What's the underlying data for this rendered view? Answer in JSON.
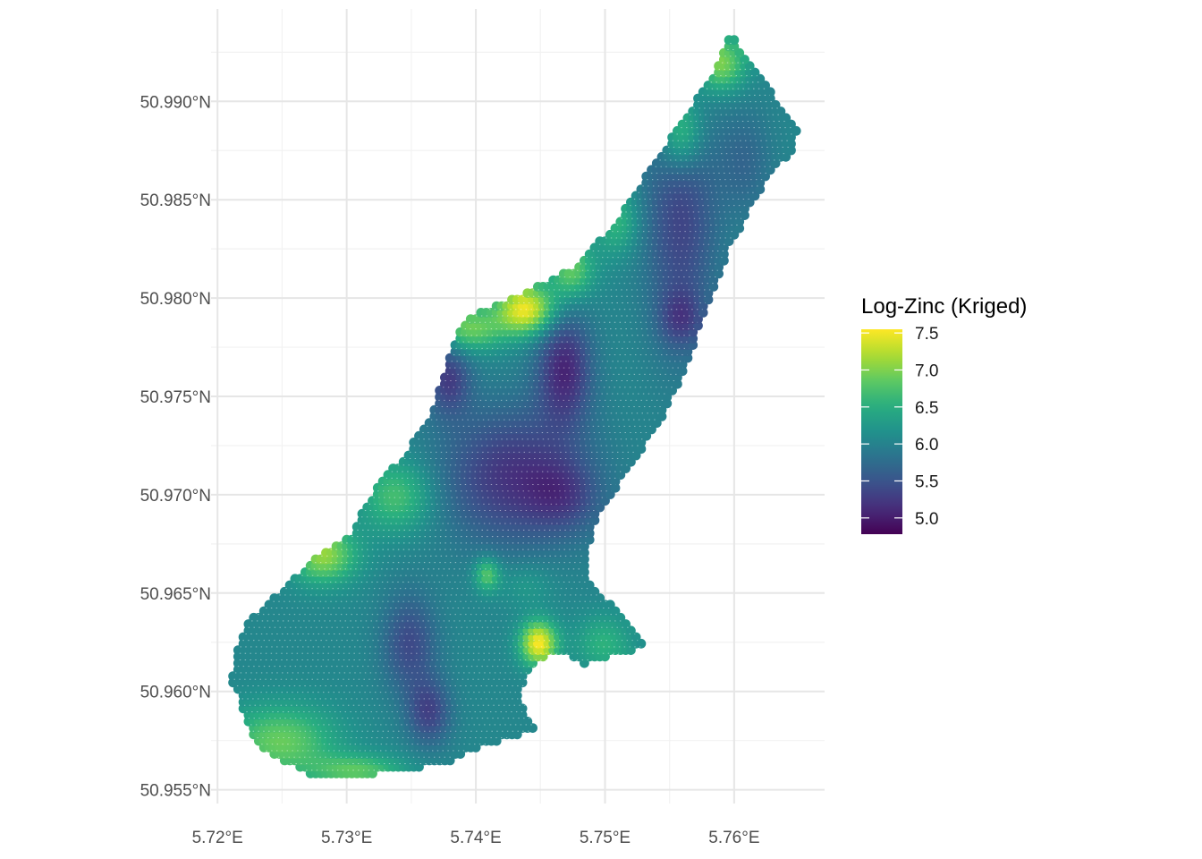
{
  "chart_data": {
    "type": "heatmap",
    "title": "",
    "xlabel": "",
    "ylabel": "",
    "grid": true,
    "legend_position": "right",
    "x_range": [
      5.7195,
      5.767
    ],
    "y_range": [
      50.9543,
      50.9947
    ],
    "x_ticks": [
      {
        "value": 5.72,
        "label": "5.72°E"
      },
      {
        "value": 5.73,
        "label": "5.73°E"
      },
      {
        "value": 5.74,
        "label": "5.74°E"
      },
      {
        "value": 5.75,
        "label": "5.75°E"
      },
      {
        "value": 5.76,
        "label": "5.76°E"
      }
    ],
    "y_ticks": [
      {
        "value": 50.955,
        "label": "50.955°N"
      },
      {
        "value": 50.96,
        "label": "50.960°N"
      },
      {
        "value": 50.965,
        "label": "50.965°N"
      },
      {
        "value": 50.97,
        "label": "50.970°N"
      },
      {
        "value": 50.975,
        "label": "50.975°N"
      },
      {
        "value": 50.98,
        "label": "50.980°N"
      },
      {
        "value": 50.985,
        "label": "50.985°N"
      },
      {
        "value": 50.99,
        "label": "50.990°N"
      }
    ],
    "legend": {
      "title": "Log-Zinc (Kriged)",
      "min": 4.78,
      "max": 7.55,
      "breaks": [
        {
          "value": 7.5,
          "label": "7.5"
        },
        {
          "value": 7.0,
          "label": "7.0"
        },
        {
          "value": 6.5,
          "label": "6.5"
        },
        {
          "value": 6.0,
          "label": "6.0"
        },
        {
          "value": 5.5,
          "label": "5.5"
        },
        {
          "value": 5.0,
          "label": "5.0"
        }
      ]
    },
    "colormap": [
      "#440154",
      "#472d7b",
      "#3b528b",
      "#2c728e",
      "#21918c",
      "#28ae80",
      "#5ec962",
      "#addc30",
      "#fde725"
    ],
    "grid_spacing": {
      "dx": 0.0004,
      "dy": 0.00033
    },
    "region_rows": [
      [
        50.9559,
        5.727,
        5.7322
      ],
      [
        50.9563,
        5.7255,
        5.7375
      ],
      [
        50.957,
        5.7235,
        5.7395
      ],
      [
        50.958,
        5.7225,
        5.7445
      ],
      [
        50.959,
        5.722,
        5.7455
      ],
      [
        50.96,
        5.7215,
        5.746
      ],
      [
        50.9607,
        5.721,
        5.7475
      ],
      [
        50.9615,
        5.7215,
        5.7485
      ],
      [
        50.9622,
        5.7215,
        5.753
      ],
      [
        50.963,
        5.722,
        5.7525
      ],
      [
        50.9637,
        5.7225,
        5.7515
      ],
      [
        50.9645,
        5.724,
        5.7505
      ],
      [
        50.9652,
        5.725,
        5.749
      ],
      [
        50.966,
        5.7265,
        5.7485
      ],
      [
        50.967,
        5.728,
        5.7485
      ],
      [
        50.968,
        5.7305,
        5.749
      ],
      [
        50.969,
        5.731,
        5.7495
      ],
      [
        50.97,
        5.732,
        5.7505
      ],
      [
        50.971,
        5.733,
        5.7515
      ],
      [
        50.972,
        5.7345,
        5.7525
      ],
      [
        50.973,
        5.7355,
        5.7535
      ],
      [
        50.974,
        5.7365,
        5.7545
      ],
      [
        50.975,
        5.737,
        5.755
      ],
      [
        50.976,
        5.7375,
        5.756
      ],
      [
        50.977,
        5.738,
        5.7565
      ],
      [
        50.978,
        5.7385,
        5.757
      ],
      [
        50.979,
        5.7395,
        5.7575
      ],
      [
        50.9798,
        5.742,
        5.758
      ],
      [
        50.9805,
        5.7445,
        5.7585
      ],
      [
        50.9815,
        5.7475,
        5.759
      ],
      [
        50.9825,
        5.749,
        5.7595
      ],
      [
        50.9835,
        5.7505,
        5.7605
      ],
      [
        50.9845,
        5.7515,
        5.761
      ],
      [
        50.9855,
        5.7525,
        5.762
      ],
      [
        50.9865,
        5.7535,
        5.763
      ],
      [
        50.9875,
        5.7545,
        5.7645
      ],
      [
        50.9885,
        5.7555,
        5.7648
      ],
      [
        50.9895,
        5.7565,
        5.7638
      ],
      [
        50.9905,
        5.7575,
        5.7628
      ],
      [
        50.9915,
        5.7585,
        5.7618
      ],
      [
        50.9922,
        5.759,
        5.7608
      ],
      [
        50.993,
        5.7595,
        5.76
      ]
    ],
    "field": {
      "base": 6.05,
      "kernels": [
        [
          5.744,
          50.9795,
          0.0016,
          0.0009,
          1.45
        ],
        [
          5.7395,
          50.9785,
          0.002,
          0.0008,
          0.9
        ],
        [
          5.7475,
          50.9815,
          0.0012,
          0.001,
          0.85
        ],
        [
          5.751,
          50.984,
          0.0012,
          0.0012,
          0.55
        ],
        [
          5.756,
          50.9885,
          0.0012,
          0.0014,
          0.85
        ],
        [
          5.759,
          50.992,
          0.0014,
          0.001,
          1.0
        ],
        [
          5.7283,
          50.967,
          0.0018,
          0.001,
          1.05
        ],
        [
          5.734,
          50.97,
          0.002,
          0.0013,
          0.7
        ],
        [
          5.725,
          50.9575,
          0.003,
          0.0013,
          0.85
        ],
        [
          5.731,
          50.956,
          0.0025,
          0.0006,
          0.75
        ],
        [
          5.745,
          50.9625,
          0.001,
          0.0008,
          1.5
        ],
        [
          5.75,
          50.9625,
          0.0015,
          0.001,
          0.5
        ],
        [
          5.752,
          50.9608,
          0.001,
          0.0008,
          0.2
        ],
        [
          5.738,
          50.976,
          0.0012,
          0.0013,
          -0.75
        ],
        [
          5.747,
          50.9765,
          0.0015,
          0.002,
          -0.95
        ],
        [
          5.743,
          50.971,
          0.004,
          0.0025,
          -0.85
        ],
        [
          5.747,
          50.97,
          0.002,
          0.0013,
          -0.45
        ],
        [
          5.735,
          50.9625,
          0.0015,
          0.0018,
          -0.65
        ],
        [
          5.7365,
          50.959,
          0.0012,
          0.0012,
          -0.7
        ],
        [
          5.756,
          50.984,
          0.002,
          0.0045,
          -0.7
        ],
        [
          5.761,
          50.987,
          0.0015,
          0.002,
          -0.35
        ],
        [
          5.756,
          50.979,
          0.0012,
          0.001,
          -0.5
        ],
        [
          5.741,
          50.966,
          0.0007,
          0.0006,
          0.8
        ],
        [
          5.744,
          50.9655,
          0.0015,
          0.0008,
          0.25
        ]
      ]
    }
  }
}
